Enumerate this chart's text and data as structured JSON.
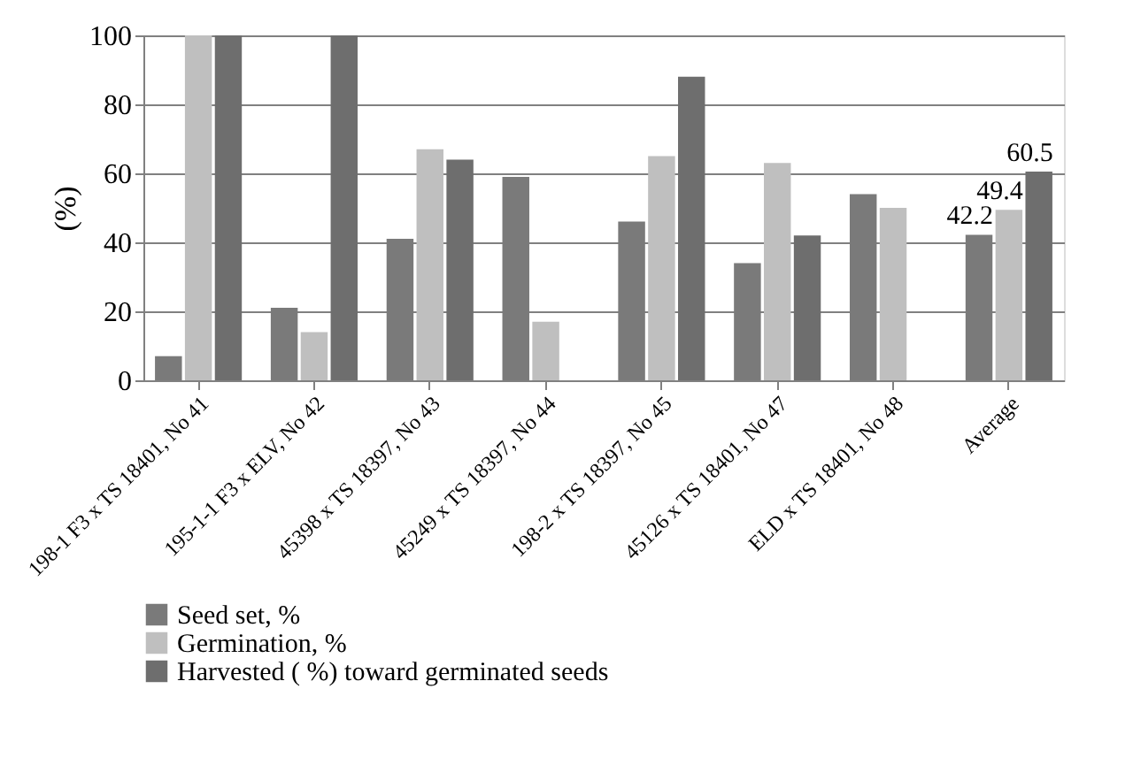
{
  "chart_data": {
    "type": "bar",
    "ylabel": "(%)",
    "categories": [
      "198-1 F3 x TS 18401,  No 41",
      "195-1-1 F3 x ELV, No 42",
      "45398 x TS 18397, No 43",
      "45249 x TS 18397, No 44",
      "198-2 x TS 18397, No 45",
      "45126 x TS 18401, No 47",
      "ELD x TS 18401, No 48",
      "Average"
    ],
    "series": [
      {
        "name": "Seed set, %",
        "color": "#7a7a7a",
        "values": [
          7,
          21,
          41,
          59,
          46,
          34,
          54,
          42.2
        ],
        "value_labels": [
          null,
          null,
          null,
          null,
          null,
          null,
          null,
          "42.2"
        ]
      },
      {
        "name": "Germination, %",
        "color": "#bfbfbf",
        "values": [
          100,
          14,
          67,
          17,
          65,
          63,
          50,
          49.4
        ],
        "value_labels": [
          null,
          null,
          null,
          null,
          null,
          null,
          null,
          "49.4"
        ]
      },
      {
        "name": "Harvested ( %) toward germinated seeds",
        "color": "#6e6e6e",
        "values": [
          100,
          100,
          64,
          0,
          88,
          42,
          0,
          60.5
        ],
        "value_labels": [
          null,
          null,
          null,
          null,
          null,
          null,
          null,
          "60.5"
        ]
      }
    ],
    "ylim": [
      0,
      100
    ],
    "yticks": [
      0,
      20,
      40,
      60,
      80,
      100
    ],
    "grid": "y",
    "legend": "bottom"
  }
}
